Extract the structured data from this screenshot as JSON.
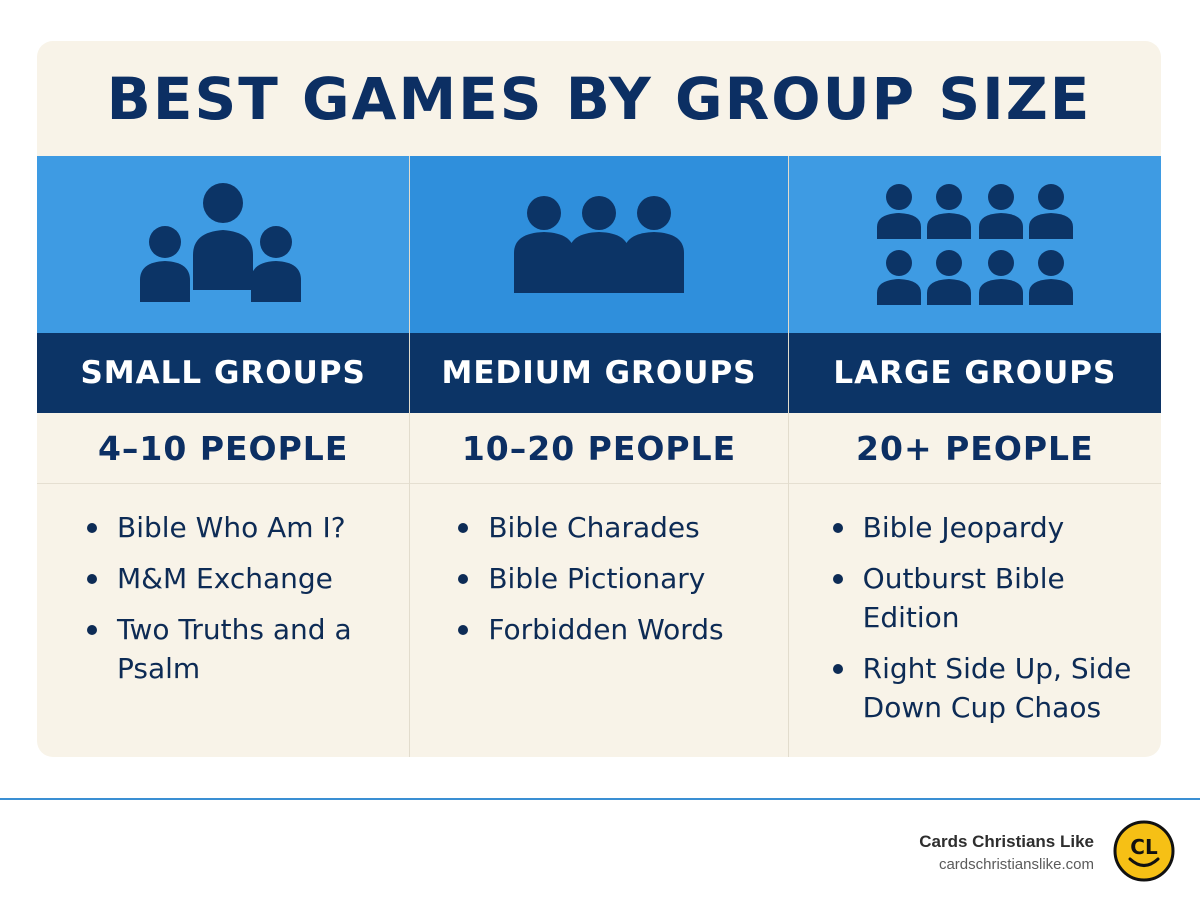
{
  "title": "BEST GAMES BY GROUP SIZE",
  "columns": [
    {
      "label": "SMALL GROUPS",
      "count": "4–10 PEOPLE",
      "icon": "small-group-people-icon",
      "games": [
        "Bible Who Am I?",
        "M&M Exchange",
        "Two Truths and a Psalm"
      ]
    },
    {
      "label": "MEDIUM GROUPS",
      "count": "10–20 PEOPLE",
      "icon": "medium-group-people-icon",
      "games": [
        "Bible Charades",
        "Bible Pictionary",
        "Forbidden Words"
      ]
    },
    {
      "label": "LARGE GROUPS",
      "count": "20+ PEOPLE",
      "icon": "large-group-people-icon",
      "games": [
        "Bible Jeopardy",
        "Outburst Bible Edition",
        "Right Side Up, Side Down Cup Chaos"
      ]
    }
  ],
  "footer": {
    "brand": "Cards Christians Like",
    "url": "cardschristianslike.com",
    "logo_text": "CL",
    "logo_icon": "smiley-logo-icon"
  },
  "colors": {
    "navy": "#0c3466",
    "blue": "#3e9be3",
    "cream": "#f8f3e8",
    "logo_yellow": "#f6c015"
  }
}
